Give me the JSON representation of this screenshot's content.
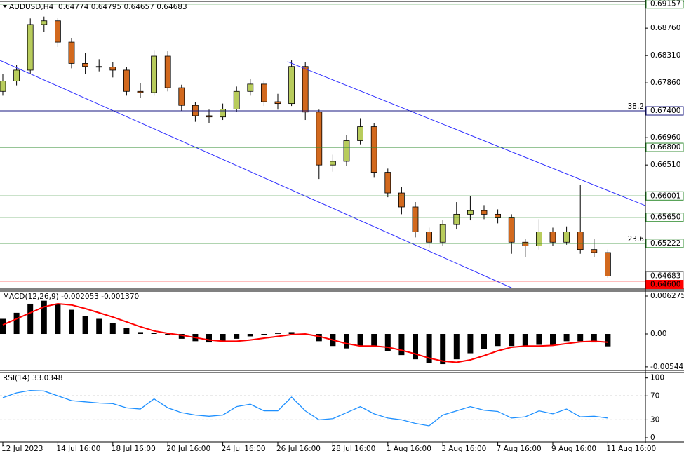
{
  "chart_data": [
    {
      "type": "candlestick",
      "title": "AUDUSD,H4  0.64774 0.64795 0.64657 0.64683",
      "categories": [
        "12 Jul 2023",
        null,
        null,
        null,
        "14 Jul 16:00",
        null,
        null,
        null,
        "18 Jul 16:00",
        null,
        null,
        null,
        "20 Jul 16:00",
        null,
        null,
        null,
        "24 Jul 16:00",
        null,
        null,
        null,
        "26 Jul 16:00",
        null,
        null,
        null,
        "28 Jul 16:00",
        null,
        null,
        null,
        "1 Aug 16:00",
        null,
        null,
        null,
        "3 Aug 16:00",
        null,
        null,
        null,
        "7 Aug 16:00",
        null,
        null,
        null,
        "9 Aug 16:00",
        null,
        null,
        null,
        "11 Aug 16:00"
      ],
      "open": [
        0.6772,
        0.6789,
        0.6807,
        0.6882,
        0.6888,
        0.6853,
        0.6818,
        0.6813,
        0.6812,
        0.6807,
        0.6772,
        0.677,
        0.683,
        0.6778,
        0.6749,
        0.6732,
        0.673,
        0.6743,
        0.6772,
        0.6784,
        0.6755,
        0.6752,
        0.6813,
        0.6738,
        0.6651,
        0.6657,
        0.6691,
        0.6714,
        0.6639,
        0.6605,
        0.6582,
        0.6541,
        0.6524,
        0.6553,
        0.657,
        0.6576,
        0.657,
        0.6564,
        0.6524,
        0.6518,
        0.6541,
        0.6524,
        0.6541,
        0.6512,
        0.6507
      ],
      "high": [
        0.68,
        0.6815,
        0.6892,
        0.6895,
        0.6893,
        0.686,
        0.6835,
        0.6825,
        0.682,
        0.6812,
        0.6785,
        0.684,
        0.6838,
        0.6783,
        0.6755,
        0.6742,
        0.6752,
        0.678,
        0.6792,
        0.679,
        0.6768,
        0.6823,
        0.682,
        0.6742,
        0.6668,
        0.67,
        0.6728,
        0.672,
        0.6645,
        0.6615,
        0.659,
        0.6548,
        0.656,
        0.659,
        0.66,
        0.6585,
        0.6578,
        0.657,
        0.653,
        0.6562,
        0.6548,
        0.655,
        0.6618,
        0.653,
        0.6512
      ],
      "low": [
        0.6765,
        0.6782,
        0.68,
        0.687,
        0.6845,
        0.681,
        0.68,
        0.6805,
        0.6795,
        0.6765,
        0.6762,
        0.6765,
        0.6772,
        0.674,
        0.6722,
        0.672,
        0.6725,
        0.6738,
        0.6765,
        0.6748,
        0.6742,
        0.6748,
        0.6725,
        0.6628,
        0.664,
        0.665,
        0.6685,
        0.663,
        0.6598,
        0.657,
        0.6532,
        0.6515,
        0.6518,
        0.6545,
        0.656,
        0.6562,
        0.6555,
        0.6505,
        0.65,
        0.6512,
        0.6518,
        0.652,
        0.6505,
        0.65,
        0.64657
      ],
      "close": [
        0.6789,
        0.6807,
        0.6882,
        0.6888,
        0.6853,
        0.6818,
        0.6813,
        0.6812,
        0.6807,
        0.6772,
        0.677,
        0.683,
        0.6778,
        0.6749,
        0.6732,
        0.673,
        0.6743,
        0.6772,
        0.6784,
        0.6755,
        0.6752,
        0.6813,
        0.6738,
        0.6651,
        0.6657,
        0.6691,
        0.6714,
        0.6639,
        0.6605,
        0.6582,
        0.6541,
        0.6524,
        0.6553,
        0.657,
        0.6576,
        0.657,
        0.6564,
        0.6524,
        0.6518,
        0.6541,
        0.6524,
        0.6541,
        0.6512,
        0.6507,
        0.64683
      ],
      "up_color": "#b8cc5c",
      "down_color": "#d2691e",
      "ylim": [
        0.6447,
        0.692
      ],
      "yticks": [
        {
          "value": 0.6876,
          "label": "0.68760"
        },
        {
          "value": 0.6831,
          "label": "0.68310"
        },
        {
          "value": 0.6786,
          "label": "0.67860"
        },
        {
          "value": 0.6696,
          "label": "0.66960"
        },
        {
          "value": 0.6651,
          "label": "0.66510"
        }
      ],
      "levels": [
        {
          "value": 0.69157,
          "label": "0.69157",
          "color": "#2e8b2e"
        },
        {
          "value": 0.674,
          "label": "0.67400",
          "color": "#1a1a80",
          "note": "38.2"
        },
        {
          "value": 0.668,
          "label": "0.66800",
          "color": "#2e8b2e"
        },
        {
          "value": 0.66001,
          "label": "0.66001",
          "color": "#2e8b2e"
        },
        {
          "value": 0.6565,
          "label": "0.65650",
          "color": "#2e8b2e"
        },
        {
          "value": 0.65222,
          "label": "0.65222",
          "color": "#2e8b2e",
          "note": "23.6"
        },
        {
          "value": 0.64683,
          "label": "0.64683",
          "color": "#888888"
        },
        {
          "value": 0.646,
          "label": "0.64600",
          "color": "#ff0000",
          "label_fill": "#ff0000"
        }
      ],
      "trendlines": [
        {
          "color": "#3030ff",
          "points": [
            [
              20.7,
              0.6821
            ],
            [
              49.5,
              0.6559
            ]
          ]
        },
        {
          "color": "#3030ff",
          "points": [
            [
              -0.2,
              0.6823
            ],
            [
              37,
              0.6449
            ]
          ]
        }
      ]
    },
    {
      "type": "macd",
      "title": "MACD(12,26,9) -0.002053 -0.001370",
      "ylim": [
        -0.00604,
        0.007088
      ],
      "yticks": [
        0.006275,
        {
          "value": 0,
          "label": "0.00"
        },
        -0.005446
      ],
      "series": [
        {
          "type": "bar",
          "color": "#000000",
          "values": [
            0.0025,
            0.0035,
            0.005,
            0.0055,
            0.005,
            0.004,
            0.003,
            0.0025,
            0.0018,
            0.001,
            0.0003,
            0.0002,
            -0.0002,
            -0.0008,
            -0.0012,
            -0.0014,
            -0.0012,
            -0.0008,
            -0.0004,
            -0.0002,
            0.0001,
            0.0003,
            -0.0002,
            -0.0012,
            -0.002,
            -0.0024,
            -0.002,
            -0.0022,
            -0.0028,
            -0.0035,
            -0.0042,
            -0.0048,
            -0.005,
            -0.0042,
            -0.0032,
            -0.0025,
            -0.002,
            -0.002,
            -0.0022,
            -0.0018,
            -0.0018,
            -0.0012,
            -0.0012,
            -0.0014,
            -0.002053
          ]
        },
        {
          "type": "line",
          "color": "#ff0000",
          "values": [
            0.0015,
            0.0025,
            0.0035,
            0.0045,
            0.005,
            0.0048,
            0.0042,
            0.0035,
            0.0028,
            0.002,
            0.0012,
            0.0005,
            0.0001,
            -0.0002,
            -0.0006,
            -0.001,
            -0.0012,
            -0.0012,
            -0.001,
            -0.0007,
            -0.0004,
            -0.0001,
            0.0,
            -0.0004,
            -0.001,
            -0.0016,
            -0.002,
            -0.002,
            -0.0022,
            -0.0027,
            -0.0033,
            -0.004,
            -0.0045,
            -0.0047,
            -0.0043,
            -0.0036,
            -0.0028,
            -0.0022,
            -0.002,
            -0.002,
            -0.0019,
            -0.0016,
            -0.0013,
            -0.0012,
            -0.00137
          ]
        }
      ]
    },
    {
      "type": "line",
      "title": "RSI(14) 33.0348",
      "ylim": [
        -7,
        109
      ],
      "yticks": [
        100,
        70,
        30,
        0
      ],
      "levels": [
        70,
        30
      ],
      "color": "#1e90ff",
      "values": [
        67,
        75,
        79,
        78,
        70,
        62,
        60,
        58,
        57,
        50,
        48,
        65,
        50,
        42,
        38,
        36,
        38,
        52,
        56,
        45,
        45,
        68,
        45,
        30,
        32,
        42,
        52,
        40,
        33,
        30,
        24,
        20,
        38,
        45,
        52,
        46,
        44,
        33,
        35,
        45,
        40,
        48,
        35,
        36,
        33.0348
      ]
    }
  ]
}
